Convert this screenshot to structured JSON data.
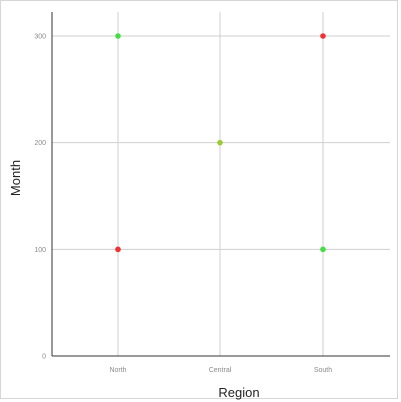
{
  "chart_data": {
    "type": "scatter",
    "title": "",
    "xlabel": "Region",
    "ylabel": "Month",
    "categories": [
      "North",
      "Central",
      "South"
    ],
    "ylim": [
      0,
      300
    ],
    "yticks": [
      0,
      100,
      200,
      300
    ],
    "ytick_labels": [
      "0",
      "100",
      "200",
      "300"
    ],
    "grid": true,
    "points": [
      {
        "x": "North",
        "y": 300,
        "color": "#44dd44"
      },
      {
        "x": "North",
        "y": 100,
        "color": "#ee3333"
      },
      {
        "x": "Central",
        "y": 200,
        "color": "#99cc33"
      },
      {
        "x": "South",
        "y": 300,
        "color": "#ee3333"
      },
      {
        "x": "South",
        "y": 100,
        "color": "#44dd44"
      }
    ]
  }
}
